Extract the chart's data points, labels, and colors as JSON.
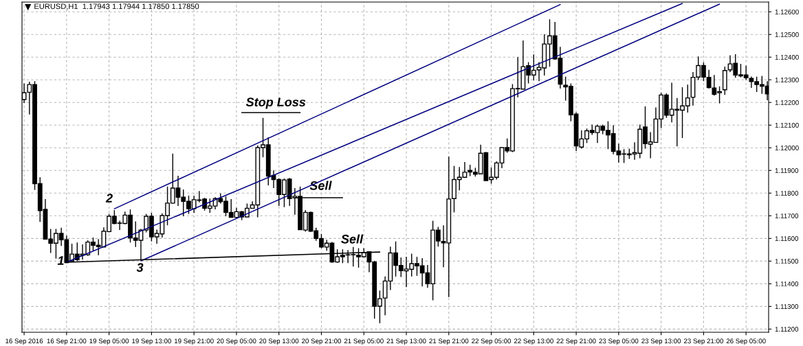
{
  "chart_data": {
    "type": "candlestick",
    "title": "EURUSD,H1  1.17943 1.17944 1.17850 1.17850",
    "categories": [
      "16 Sep 2016",
      null,
      null,
      null,
      null,
      null,
      null,
      null,
      "16 Sep 21:00",
      null,
      null,
      null,
      null,
      null,
      null,
      null,
      "19 Sep 05:00",
      null,
      null,
      null,
      null,
      null,
      null,
      null,
      "19 Sep 13:00",
      null,
      null,
      null,
      null,
      null,
      null,
      null,
      "19 Sep 21:00",
      null,
      null,
      null,
      null,
      null,
      null,
      null,
      "20 Sep 05:00",
      null,
      null,
      null,
      null,
      null,
      null,
      null,
      "20 Sep 13:00",
      null,
      null,
      null,
      null,
      null,
      null,
      null,
      "20 Sep 21:00",
      null,
      null,
      null,
      null,
      null,
      null,
      null,
      "21 Sep 05:00",
      null,
      null,
      null,
      null,
      null,
      null,
      null,
      "21 Sep 13:00",
      null,
      null,
      null,
      null,
      null,
      null,
      null,
      "21 Sep 21:00",
      null,
      null,
      null,
      null,
      null,
      null,
      null,
      "22 Sep 05:00",
      null,
      null,
      null,
      null,
      null,
      null,
      null,
      "22 Sep 13:00",
      null,
      null,
      null,
      null,
      null,
      null,
      null,
      "22 Sep 21:00",
      null,
      null,
      null,
      null,
      null,
      null,
      null,
      "23 Sep 05:00",
      null,
      null,
      null,
      null,
      null,
      null,
      null,
      "23 Sep 13:00",
      null,
      null,
      null,
      null,
      null,
      null,
      null,
      "23 Sep 21:00",
      null,
      null,
      null,
      null,
      null,
      null,
      null,
      "26 Sep 05:00",
      null,
      null,
      null,
      null
    ],
    "ohlc": [
      [
        1.12213,
        1.12284,
        1.12198,
        1.12243
      ],
      [
        1.12245,
        1.12292,
        1.12147,
        1.12279
      ],
      [
        1.12279,
        1.12294,
        1.11814,
        1.11842
      ],
      [
        1.11842,
        1.1187,
        1.11673,
        1.11723
      ],
      [
        1.11728,
        1.11774,
        1.11597,
        1.11597
      ],
      [
        1.11597,
        1.11642,
        1.11536,
        1.11579
      ],
      [
        1.11579,
        1.11642,
        1.11511,
        1.11622
      ],
      [
        1.11622,
        1.11647,
        1.11567,
        1.11594
      ],
      [
        1.11594,
        1.11612,
        1.11491,
        1.11493
      ],
      [
        1.11501,
        1.11577,
        1.11496,
        1.11531
      ],
      [
        1.11531,
        1.11582,
        1.11501,
        1.11506
      ],
      [
        1.11526,
        1.11574,
        1.11506,
        1.11531
      ],
      [
        1.11528,
        1.11592,
        1.11523,
        1.11584
      ],
      [
        1.11584,
        1.11604,
        1.11546,
        1.1157
      ],
      [
        1.1157,
        1.11597,
        1.11526,
        1.11564
      ],
      [
        1.11562,
        1.11649,
        1.11562,
        1.11632
      ],
      [
        1.1163,
        1.11708,
        1.11627,
        1.11698
      ],
      [
        1.11698,
        1.11725,
        1.11663,
        1.11666
      ],
      [
        1.11668,
        1.11678,
        1.11637,
        1.11667
      ],
      [
        1.11666,
        1.11718,
        1.11663,
        1.11703
      ],
      [
        1.11703,
        1.11728,
        1.11582,
        1.11602
      ],
      [
        1.11602,
        1.11675,
        1.11562,
        1.11592
      ],
      [
        1.11592,
        1.11642,
        1.11503,
        1.11637
      ],
      [
        1.11637,
        1.11708,
        1.11627,
        1.11698
      ],
      [
        1.11698,
        1.11713,
        1.11587,
        1.11607
      ],
      [
        1.11607,
        1.11639,
        1.11577,
        1.11622
      ],
      [
        1.1162,
        1.11711,
        1.11604,
        1.11701
      ],
      [
        1.11701,
        1.11829,
        1.11658,
        1.11756
      ],
      [
        1.11756,
        1.11974,
        1.11754,
        1.11822
      ],
      [
        1.11822,
        1.11877,
        1.11743,
        1.11782
      ],
      [
        1.11782,
        1.11816,
        1.11698,
        1.11764
      ],
      [
        1.11764,
        1.11789,
        1.11708,
        1.11731
      ],
      [
        1.11731,
        1.11789,
        1.11713,
        1.11771
      ],
      [
        1.11768,
        1.11809,
        1.11759,
        1.1177
      ],
      [
        1.11774,
        1.11779,
        1.11723,
        1.11733
      ],
      [
        1.11733,
        1.11776,
        1.11713,
        1.11743
      ],
      [
        1.11743,
        1.11782,
        1.11728,
        1.11776
      ],
      [
        1.11776,
        1.11799,
        1.11754,
        1.11762
      ],
      [
        1.11764,
        1.11786,
        1.11698,
        1.11715
      ],
      [
        1.11715,
        1.11774,
        1.11693,
        1.11693
      ],
      [
        1.11693,
        1.11735,
        1.11688,
        1.11718
      ],
      [
        1.11718,
        1.11721,
        1.11681,
        1.11695
      ],
      [
        1.11695,
        1.11754,
        1.11695,
        1.11733
      ],
      [
        1.11733,
        1.11764,
        1.11733,
        1.11748
      ],
      [
        1.11748,
        1.12011,
        1.11693,
        1.12001
      ],
      [
        1.12001,
        1.12132,
        1.11958,
        1.12013
      ],
      [
        1.12013,
        1.12046,
        1.11834,
        1.11875
      ],
      [
        1.11878,
        1.119,
        1.11822,
        1.1186
      ],
      [
        1.1186,
        1.11865,
        1.11743,
        1.11794
      ],
      [
        1.11794,
        1.11865,
        1.11738,
        1.11858
      ],
      [
        1.11862,
        1.11867,
        1.11743,
        1.11776
      ],
      [
        1.11779,
        1.11822,
        1.11705,
        1.11786
      ],
      [
        1.11786,
        1.11829,
        1.11639,
        1.11639
      ],
      [
        1.11637,
        1.11725,
        1.1163,
        1.11715
      ],
      [
        1.11715,
        1.11718,
        1.1163,
        1.11632
      ],
      [
        1.11634,
        1.11647,
        1.1159,
        1.116
      ],
      [
        1.116,
        1.1162,
        1.11557,
        1.11562
      ],
      [
        1.11562,
        1.11594,
        1.11546,
        1.11579
      ],
      [
        1.11579,
        1.11584,
        1.11493,
        1.11496
      ],
      [
        1.11496,
        1.11552,
        1.11493,
        1.11519
      ],
      [
        1.11526,
        1.11552,
        1.11491,
        1.11519
      ],
      [
        1.11528,
        1.11549,
        1.11491,
        1.11527
      ],
      [
        1.11528,
        1.11562,
        1.11476,
        1.11529
      ],
      [
        1.11526,
        1.11557,
        1.11471,
        1.11519
      ],
      [
        1.11519,
        1.11557,
        1.11516,
        1.11538
      ],
      [
        1.11541,
        1.11543,
        1.11451,
        1.11496
      ],
      [
        1.11496,
        1.11501,
        1.11246,
        1.11301
      ],
      [
        1.11301,
        1.1137,
        1.11226,
        1.11334
      ],
      [
        1.11337,
        1.11432,
        1.11261,
        1.11412
      ],
      [
        1.11412,
        1.11564,
        1.11372,
        1.11536
      ],
      [
        1.11536,
        1.11587,
        1.11432,
        1.11481
      ],
      [
        1.11481,
        1.11516,
        1.1143,
        1.11458
      ],
      [
        1.11457,
        1.11519,
        1.11385,
        1.11465
      ],
      [
        1.11464,
        1.11533,
        1.11432,
        1.11489
      ],
      [
        1.11489,
        1.11519,
        1.11435,
        1.11479
      ],
      [
        1.11479,
        1.11513,
        1.11388,
        1.11448
      ],
      [
        1.11448,
        1.11483,
        1.11382,
        1.114
      ],
      [
        1.114,
        1.11678,
        1.11327,
        1.11637
      ],
      [
        1.11637,
        1.11651,
        1.11564,
        1.11589
      ],
      [
        1.11587,
        1.11658,
        1.11473,
        1.1158
      ],
      [
        1.1158,
        1.11961,
        1.11341,
        1.11774
      ],
      [
        1.11776,
        1.1192,
        1.11715,
        1.1186
      ],
      [
        1.1186,
        1.11915,
        1.11812,
        1.1187
      ],
      [
        1.1187,
        1.11937,
        1.11867,
        1.11892
      ],
      [
        1.119,
        1.11925,
        1.11875,
        1.11893
      ],
      [
        1.11892,
        1.11912,
        1.11873,
        1.11883
      ],
      [
        1.11885,
        1.12014,
        1.11883,
        1.11976
      ],
      [
        1.11978,
        1.11981,
        1.11855,
        1.11855
      ],
      [
        1.1186,
        1.11913,
        1.11842,
        1.1187
      ],
      [
        1.1187,
        1.1194,
        1.1186,
        1.11933
      ],
      [
        1.11933,
        1.12001,
        1.1191,
        1.12001
      ],
      [
        1.12001,
        1.12041,
        1.11978,
        1.11986
      ],
      [
        1.11986,
        1.12281,
        1.11981,
        1.12261
      ],
      [
        1.1226,
        1.124,
        1.12223,
        1.12262
      ],
      [
        1.12259,
        1.12473,
        1.12259,
        1.12358
      ],
      [
        1.12362,
        1.12378,
        1.12284,
        1.12321
      ],
      [
        1.12321,
        1.12412,
        1.12297,
        1.12342
      ],
      [
        1.12344,
        1.12378,
        1.12294,
        1.12355
      ],
      [
        1.12352,
        1.12501,
        1.12319,
        1.12458
      ],
      [
        1.12458,
        1.12567,
        1.12358,
        1.12494
      ],
      [
        1.12494,
        1.12555,
        1.12388,
        1.12392
      ],
      [
        1.12395,
        1.12445,
        1.12261,
        1.12281
      ],
      [
        1.12276,
        1.12314,
        1.12208,
        1.12269
      ],
      [
        1.12271,
        1.12284,
        1.12117,
        1.12145
      ],
      [
        1.12149,
        1.12156,
        1.11986,
        1.12008
      ],
      [
        1.12003,
        1.12077,
        1.11996,
        1.12039
      ],
      [
        1.12039,
        1.12085,
        1.12021,
        1.12075
      ],
      [
        1.12077,
        1.12102,
        1.12057,
        1.12067
      ],
      [
        1.12067,
        1.12102,
        1.12021,
        1.12095
      ],
      [
        1.12095,
        1.12102,
        1.1206,
        1.12077
      ],
      [
        1.12077,
        1.12117,
        1.11994,
        1.12057
      ],
      [
        1.12062,
        1.12099,
        1.11971,
        1.11984
      ],
      [
        1.11986,
        1.12018,
        1.11935,
        1.11969
      ],
      [
        1.11973,
        1.11994,
        1.11933,
        1.11972
      ],
      [
        1.11973,
        1.11996,
        1.11951,
        1.11969
      ],
      [
        1.11973,
        1.12024,
        1.11947,
        1.11979
      ],
      [
        1.11976,
        1.12102,
        1.11954,
        1.12082
      ],
      [
        1.12092,
        1.12183,
        1.11996,
        1.12018
      ],
      [
        1.12016,
        1.12069,
        1.11954,
        1.12026
      ],
      [
        1.12024,
        1.12178,
        1.12024,
        1.12127
      ],
      [
        1.12127,
        1.12243,
        1.12087,
        1.12233
      ],
      [
        1.12233,
        1.1224,
        1.12132,
        1.12144
      ],
      [
        1.12144,
        1.12287,
        1.12112,
        1.1217
      ],
      [
        1.1217,
        1.1222,
        1.12006,
        1.12166
      ],
      [
        1.12166,
        1.12267,
        1.12043,
        1.12185
      ],
      [
        1.12185,
        1.12279,
        1.12155,
        1.1222
      ],
      [
        1.12223,
        1.12334,
        1.12186,
        1.12311
      ],
      [
        1.12312,
        1.12403,
        1.12299,
        1.12363
      ],
      [
        1.12363,
        1.12377,
        1.12294,
        1.12312
      ],
      [
        1.12311,
        1.12344,
        1.12261,
        1.12266
      ],
      [
        1.12264,
        1.12321,
        1.1223,
        1.12236
      ],
      [
        1.12243,
        1.12271,
        1.12196,
        1.12248
      ],
      [
        1.12256,
        1.12358,
        1.12233,
        1.12341
      ],
      [
        1.12344,
        1.12408,
        1.12334,
        1.1237
      ],
      [
        1.12373,
        1.12413,
        1.12309,
        1.12321
      ],
      [
        1.12322,
        1.1237,
        1.12311,
        1.12317
      ],
      [
        1.12321,
        1.12362,
        1.12299,
        1.12309
      ],
      [
        1.12306,
        1.12314,
        1.12264,
        1.12292
      ],
      [
        1.12292,
        1.12314,
        1.12246,
        1.12279
      ],
      [
        1.12279,
        1.12317,
        1.12238,
        1.12272
      ],
      [
        1.12272,
        1.12294,
        1.1221,
        1.12238
      ]
    ],
    "series": [
      {
        "type": "line",
        "color": "#000080",
        "values": [
          null,
          null,
          null,
          null,
          null,
          null,
          null,
          null,
          null,
          null,
          null,
          null,
          null,
          null,
          null,
          null,
          null,
          1.11731,
          null,
          null,
          null,
          null,
          null,
          null,
          null,
          null,
          null,
          null,
          null,
          null,
          null,
          null,
          null,
          null,
          null,
          null,
          null,
          null,
          null,
          null,
          null,
          null,
          null,
          null,
          null,
          null,
          null,
          null,
          null,
          null,
          null,
          null,
          null,
          null,
          null,
          null,
          null,
          null,
          null,
          null,
          null,
          null,
          null,
          null,
          null,
          null,
          null,
          null,
          null,
          null,
          null,
          null,
          null,
          null,
          null,
          null,
          null,
          null,
          null,
          null,
          null,
          null,
          null,
          null,
          null,
          null,
          null,
          null,
          null,
          null,
          null,
          null,
          null,
          null,
          null,
          null,
          null,
          null,
          null,
          null,
          null,
          1.12632,
          null,
          null,
          null,
          null,
          null,
          null,
          null,
          null,
          null,
          null,
          null,
          null,
          null,
          null,
          null,
          null,
          null,
          null,
          null,
          null,
          null,
          null,
          null,
          null,
          null,
          null,
          null,
          null,
          null,
          null,
          null,
          null,
          null,
          null,
          null,
          null,
          null,
          null,
          null
        ]
      },
      {
        "type": "line",
        "color": "#000080",
        "values": [
          null,
          null,
          null,
          null,
          null,
          null,
          null,
          null,
          1.11495,
          null,
          null,
          null,
          null,
          null,
          null,
          null,
          null,
          null,
          null,
          null,
          null,
          null,
          null,
          null,
          null,
          null,
          null,
          null,
          null,
          null,
          null,
          null,
          null,
          null,
          null,
          null,
          null,
          null,
          null,
          null,
          null,
          null,
          null,
          null,
          null,
          null,
          null,
          null,
          null,
          null,
          null,
          null,
          null,
          null,
          null,
          null,
          null,
          null,
          null,
          null,
          null,
          null,
          null,
          null,
          null,
          null,
          null,
          null,
          null,
          null,
          null,
          null,
          null,
          null,
          null,
          null,
          null,
          null,
          null,
          null,
          null,
          null,
          null,
          null,
          null,
          null,
          null,
          null,
          null,
          null,
          null,
          null,
          null,
          null,
          null,
          null,
          null,
          null,
          null,
          null,
          null,
          null,
          null,
          null,
          null,
          null,
          null,
          null,
          null,
          null,
          null,
          null,
          null,
          null,
          null,
          null,
          null,
          null,
          null,
          null,
          null,
          null,
          null,
          null,
          1.12637,
          null,
          null,
          null,
          null,
          null,
          null,
          null,
          null,
          null,
          null,
          null,
          null,
          null,
          null,
          null,
          null
        ]
      },
      {
        "type": "line",
        "color": "#000080",
        "values": [
          null,
          null,
          null,
          null,
          null,
          null,
          null,
          null,
          null,
          null,
          null,
          null,
          null,
          null,
          null,
          null,
          null,
          null,
          null,
          null,
          null,
          null,
          1.11501,
          null,
          null,
          null,
          null,
          null,
          null,
          null,
          null,
          null,
          null,
          null,
          null,
          null,
          null,
          null,
          null,
          null,
          null,
          null,
          null,
          null,
          null,
          null,
          null,
          null,
          null,
          null,
          null,
          null,
          null,
          null,
          null,
          null,
          null,
          null,
          null,
          null,
          null,
          null,
          null,
          null,
          null,
          null,
          null,
          null,
          null,
          null,
          null,
          null,
          null,
          null,
          null,
          null,
          null,
          null,
          null,
          null,
          null,
          null,
          null,
          null,
          null,
          null,
          null,
          null,
          null,
          null,
          null,
          null,
          null,
          null,
          null,
          null,
          null,
          null,
          null,
          null,
          null,
          null,
          null,
          null,
          null,
          null,
          null,
          null,
          null,
          null,
          null,
          null,
          null,
          null,
          null,
          null,
          null,
          null,
          null,
          null,
          null,
          null,
          null,
          null,
          null,
          null,
          null,
          null,
          null,
          null,
          null,
          1.12634,
          null,
          null,
          null,
          null,
          null,
          null,
          null,
          null,
          null
        ]
      },
      {
        "type": "line",
        "color": "#000000",
        "values": [
          null,
          null,
          null,
          null,
          null,
          null,
          null,
          null,
          1.11495,
          null,
          null,
          null,
          null,
          null,
          null,
          null,
          null,
          null,
          null,
          null,
          null,
          null,
          null,
          null,
          null,
          null,
          null,
          null,
          null,
          null,
          null,
          null,
          null,
          null,
          null,
          null,
          null,
          null,
          null,
          null,
          null,
          null,
          null,
          null,
          null,
          null,
          null,
          null,
          null,
          null,
          null,
          null,
          null,
          null,
          null,
          null,
          null,
          null,
          null,
          null,
          null,
          null,
          null,
          null,
          null,
          null,
          null,
          1.1154,
          null,
          null,
          null,
          null,
          null,
          null,
          null,
          null,
          null,
          null,
          null,
          null,
          null,
          null,
          null,
          null,
          null,
          null,
          null,
          null,
          null,
          null,
          null,
          null,
          null,
          null,
          null,
          null,
          null,
          null,
          null,
          null,
          null,
          null,
          null,
          null,
          null,
          null,
          null,
          null,
          null,
          null,
          null,
          null,
          null,
          null,
          null,
          null,
          null,
          null,
          null,
          null,
          null,
          null,
          null,
          null,
          null,
          null,
          null,
          null,
          null,
          null,
          null,
          null,
          null,
          null,
          null,
          null,
          null,
          null,
          null,
          null,
          null
        ]
      },
      {
        "type": "line",
        "color": "#000000",
        "values": [
          null,
          null,
          null,
          null,
          null,
          null,
          null,
          null,
          null,
          null,
          null,
          null,
          null,
          null,
          null,
          null,
          null,
          null,
          null,
          null,
          null,
          null,
          null,
          null,
          null,
          null,
          null,
          null,
          null,
          null,
          null,
          null,
          null,
          null,
          null,
          null,
          null,
          null,
          null,
          null,
          null,
          1.12155,
          null,
          null,
          null,
          null,
          null,
          null,
          null,
          null,
          null,
          null,
          1.12155,
          null,
          null,
          null,
          null,
          null,
          null,
          null,
          null,
          null,
          null,
          null,
          null,
          null,
          null,
          null,
          null,
          null,
          null,
          null,
          null,
          null,
          null,
          null,
          null,
          null,
          null,
          null,
          null,
          null,
          null,
          null,
          null,
          null,
          null,
          null,
          null,
          null,
          null,
          null,
          null,
          null,
          null,
          null,
          null,
          null,
          null,
          null,
          null,
          null,
          null,
          null,
          null,
          null,
          null,
          null,
          null,
          null,
          null,
          null,
          null,
          null,
          null,
          null,
          null,
          null,
          null,
          null,
          null,
          null,
          null,
          null,
          null,
          null,
          null,
          null,
          null,
          null,
          null,
          null,
          null,
          null,
          null,
          null,
          null,
          null,
          null,
          null,
          null
        ]
      },
      {
        "type": "line",
        "color": "#000000",
        "values": [
          null,
          null,
          null,
          null,
          null,
          null,
          null,
          null,
          null,
          null,
          null,
          null,
          null,
          null,
          null,
          null,
          null,
          null,
          null,
          null,
          null,
          null,
          null,
          null,
          null,
          null,
          null,
          null,
          null,
          null,
          null,
          null,
          null,
          null,
          null,
          null,
          null,
          null,
          null,
          null,
          null,
          null,
          null,
          null,
          null,
          null,
          null,
          null,
          null,
          null,
          null,
          1.1178,
          null,
          null,
          null,
          null,
          null,
          null,
          null,
          null,
          1.1178,
          null,
          null,
          null,
          null,
          null,
          null,
          null,
          null,
          null,
          null,
          null,
          null,
          null,
          null,
          null,
          null,
          null,
          null,
          null,
          null,
          null,
          null,
          null,
          null,
          null,
          null,
          null,
          null,
          null,
          null,
          null,
          null,
          null,
          null,
          null,
          null,
          null,
          null,
          null,
          null,
          null,
          null,
          null,
          null,
          null,
          null,
          null,
          null,
          null,
          null,
          null,
          null,
          null,
          null,
          null,
          null,
          null,
          null,
          null,
          null,
          null,
          null,
          null,
          null,
          null,
          null,
          null,
          null,
          null,
          null,
          null,
          null,
          null,
          null,
          null,
          null,
          null,
          null,
          null,
          null
        ]
      }
    ],
    "annotations": [
      "Stop Loss",
      "Sell",
      "Sell",
      "1",
      "2",
      "3"
    ],
    "ylim": [
      1.11186,
      1.12643
    ],
    "yticks": [
      {
        "value": 1.112,
        "label": "1.11200"
      },
      {
        "value": 1.113,
        "label": "1.11300"
      },
      {
        "value": 1.114,
        "label": "1.11400"
      },
      {
        "value": 1.115,
        "label": "1.11500"
      },
      {
        "value": 1.116,
        "label": "1.11600"
      },
      {
        "value": 1.117,
        "label": "1.11700"
      },
      {
        "value": 1.118,
        "label": "1.11800"
      },
      {
        "value": 1.119,
        "label": "1.11900"
      },
      {
        "value": 1.12,
        "label": "1.12000"
      },
      {
        "value": 1.121,
        "label": "1.12100"
      },
      {
        "value": 1.122,
        "label": "1.12200"
      },
      {
        "value": 1.123,
        "label": "1.12300"
      },
      {
        "value": 1.124,
        "label": "1.12400"
      },
      {
        "value": 1.125,
        "label": "1.12500"
      },
      {
        "value": 1.126,
        "label": "1.12600"
      }
    ],
    "grid": true
  }
}
